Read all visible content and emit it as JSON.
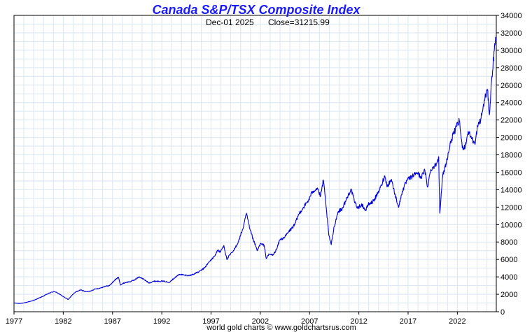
{
  "chart_data": {
    "type": "line",
    "title": "Canada S&P/TSX Composite Index",
    "subtitle_date": "Dec-01  2025",
    "subtitle_close": "Close=31215.99",
    "footer": "world gold charts © www.goldchartsrus.com",
    "xlabel": "",
    "ylabel": "",
    "xlim": [
      1977.0,
      2025.95
    ],
    "ylim": [
      0,
      34000
    ],
    "grid": true,
    "y_ticks": [
      0,
      2000,
      4000,
      6000,
      8000,
      10000,
      12000,
      14000,
      16000,
      18000,
      20000,
      22000,
      24000,
      26000,
      28000,
      30000,
      32000,
      34000
    ],
    "x_ticks": [
      {
        "value": 1977,
        "label": "1977"
      },
      {
        "value": 1982,
        "label": "1982"
      },
      {
        "value": 1987,
        "label": "1987"
      },
      {
        "value": 1992,
        "label": "1992"
      },
      {
        "value": 1997,
        "label": "1997"
      },
      {
        "value": 2002,
        "label": "2002"
      },
      {
        "value": 2007,
        "label": "2007"
      },
      {
        "value": 2012,
        "label": "2012"
      },
      {
        "value": 2017,
        "label": "2017"
      },
      {
        "value": 2022,
        "label": "2022"
      }
    ],
    "series": [
      {
        "name": "S&P/TSX Composite",
        "color": "#0000dd",
        "points": [
          [
            1977.0,
            1000
          ],
          [
            1977.5,
            950
          ],
          [
            1978.0,
            1000
          ],
          [
            1978.5,
            1150
          ],
          [
            1979.0,
            1300
          ],
          [
            1979.5,
            1550
          ],
          [
            1980.0,
            1800
          ],
          [
            1980.5,
            2100
          ],
          [
            1981.0,
            2300
          ],
          [
            1981.3,
            2250
          ],
          [
            1981.7,
            1950
          ],
          [
            1982.2,
            1600
          ],
          [
            1982.5,
            1400
          ],
          [
            1982.9,
            1900
          ],
          [
            1983.3,
            2300
          ],
          [
            1983.8,
            2500
          ],
          [
            1984.3,
            2300
          ],
          [
            1984.7,
            2350
          ],
          [
            1985.2,
            2600
          ],
          [
            1985.7,
            2700
          ],
          [
            1986.2,
            2900
          ],
          [
            1986.7,
            3000
          ],
          [
            1987.2,
            3600
          ],
          [
            1987.6,
            3950
          ],
          [
            1987.8,
            3100
          ],
          [
            1988.3,
            3350
          ],
          [
            1988.8,
            3450
          ],
          [
            1989.3,
            3700
          ],
          [
            1989.7,
            4000
          ],
          [
            1990.2,
            3700
          ],
          [
            1990.7,
            3300
          ],
          [
            1991.2,
            3500
          ],
          [
            1991.7,
            3500
          ],
          [
            1992.2,
            3500
          ],
          [
            1992.7,
            3350
          ],
          [
            1993.2,
            3800
          ],
          [
            1993.8,
            4300
          ],
          [
            1994.3,
            4200
          ],
          [
            1994.8,
            4150
          ],
          [
            1995.3,
            4350
          ],
          [
            1995.8,
            4600
          ],
          [
            1996.3,
            5000
          ],
          [
            1996.8,
            5700
          ],
          [
            1997.3,
            6300
          ],
          [
            1997.7,
            7100
          ],
          [
            1997.9,
            6800
          ],
          [
            1998.3,
            7600
          ],
          [
            1998.6,
            6000
          ],
          [
            1998.9,
            6500
          ],
          [
            1999.3,
            7000
          ],
          [
            1999.8,
            8100
          ],
          [
            2000.3,
            9800
          ],
          [
            2000.6,
            11300
          ],
          [
            2000.9,
            9600
          ],
          [
            2001.3,
            8200
          ],
          [
            2001.7,
            7000
          ],
          [
            2002.0,
            7800
          ],
          [
            2002.4,
            7600
          ],
          [
            2002.6,
            6100
          ],
          [
            2002.9,
            6600
          ],
          [
            2003.3,
            6500
          ],
          [
            2003.7,
            7300
          ],
          [
            2003.95,
            8200
          ],
          [
            2004.5,
            8600
          ],
          [
            2004.9,
            9200
          ],
          [
            2005.5,
            10000
          ],
          [
            2005.9,
            11200
          ],
          [
            2006.4,
            12000
          ],
          [
            2006.9,
            12800
          ],
          [
            2007.3,
            13800
          ],
          [
            2007.8,
            14200
          ],
          [
            2008.1,
            13200
          ],
          [
            2008.4,
            15100
          ],
          [
            2008.7,
            11800
          ],
          [
            2008.95,
            8800
          ],
          [
            2009.2,
            7700
          ],
          [
            2009.5,
            9800
          ],
          [
            2009.9,
            11500
          ],
          [
            2010.3,
            11800
          ],
          [
            2010.9,
            13300
          ],
          [
            2011.2,
            14100
          ],
          [
            2011.6,
            12500
          ],
          [
            2011.9,
            11900
          ],
          [
            2012.3,
            12300
          ],
          [
            2012.7,
            11600
          ],
          [
            2012.95,
            12300
          ],
          [
            2013.4,
            12600
          ],
          [
            2013.9,
            13500
          ],
          [
            2014.3,
            14500
          ],
          [
            2014.6,
            15600
          ],
          [
            2014.9,
            14400
          ],
          [
            2015.3,
            15200
          ],
          [
            2015.7,
            13300
          ],
          [
            2016.05,
            12000
          ],
          [
            2016.4,
            13800
          ],
          [
            2016.9,
            15100
          ],
          [
            2017.4,
            15500
          ],
          [
            2017.9,
            16000
          ],
          [
            2018.3,
            15400
          ],
          [
            2018.7,
            16200
          ],
          [
            2018.97,
            14300
          ],
          [
            2019.3,
            16300
          ],
          [
            2019.9,
            17000
          ],
          [
            2020.1,
            17800
          ],
          [
            2020.22,
            11300
          ],
          [
            2020.5,
            15500
          ],
          [
            2020.95,
            17500
          ],
          [
            2021.4,
            19800
          ],
          [
            2021.9,
            21200
          ],
          [
            2022.2,
            21900
          ],
          [
            2022.5,
            18800
          ],
          [
            2022.8,
            19000
          ],
          [
            2023.1,
            20700
          ],
          [
            2023.5,
            19800
          ],
          [
            2023.8,
            19200
          ],
          [
            2024.0,
            21000
          ],
          [
            2024.4,
            22200
          ],
          [
            2024.8,
            24500
          ],
          [
            2025.05,
            25500
          ],
          [
            2025.25,
            22600
          ],
          [
            2025.5,
            27000
          ],
          [
            2025.75,
            30000
          ],
          [
            2025.88,
            31500
          ],
          [
            2025.95,
            31216
          ]
        ]
      }
    ]
  }
}
